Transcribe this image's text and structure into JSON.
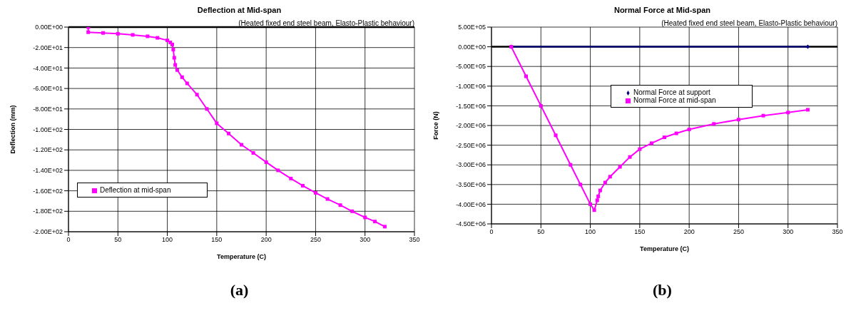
{
  "chart_data": [
    {
      "type": "line",
      "title": "Deflection at Mid-span",
      "subtitle": "(Heated fixed end steel beam, Elasto-Plastic behaviour)",
      "xlabel": "Temperature (C)",
      "ylabel": "Deflection (mm)",
      "annotations": [
        "(a)"
      ],
      "series": [
        {
          "name": "Deflection at mid-span",
          "color": "#ff00ff",
          "marker": "square",
          "x": [
            20,
            20,
            35,
            50,
            65,
            80,
            90,
            100,
            103,
            105,
            106,
            107,
            108,
            110,
            115,
            120,
            130,
            140,
            150,
            162,
            175,
            187,
            200,
            212,
            225,
            237,
            250,
            262,
            275,
            287,
            300,
            310,
            320
          ],
          "values": [
            0,
            -5,
            -5.7,
            -6.5,
            -7.6,
            -9,
            -10.5,
            -13,
            -15,
            -17,
            -22,
            -30,
            -37,
            -42,
            -49,
            -55,
            -66,
            -80,
            -94,
            -104,
            -115,
            -123,
            -132,
            -140,
            -148,
            -155,
            -162,
            -168,
            -174,
            -180,
            -186,
            -190,
            -195
          ]
        }
      ],
      "xlim": [
        0,
        350
      ],
      "xticks": [
        0,
        50,
        100,
        150,
        200,
        250,
        300,
        350
      ],
      "ylim": [
        -200,
        0
      ],
      "yticks": [
        {
          "value": 0,
          "label": "0.00E+00"
        },
        {
          "value": -20,
          "label": "-2.00E+01"
        },
        {
          "value": -40,
          "label": "-4.00E+01"
        },
        {
          "value": -60,
          "label": "-6.00E+01"
        },
        {
          "value": -80,
          "label": "-8.00E+01"
        },
        {
          "value": -100,
          "label": "-1.00E+02"
        },
        {
          "value": -120,
          "label": "-1.20E+02"
        },
        {
          "value": -140,
          "label": "-1.40E+02"
        },
        {
          "value": -160,
          "label": "-1.60E+02"
        },
        {
          "value": -180,
          "label": "-1.80E+02"
        },
        {
          "value": -200,
          "label": "-2.00E+02"
        }
      ],
      "ref_lines": [
        {
          "axis": "y",
          "value": 0,
          "color": "#000000"
        }
      ],
      "grid": true,
      "legend": "left",
      "line_style": "solid"
    },
    {
      "type": "line",
      "title": "Normal Force at Mid-span",
      "subtitle": "(Heated fixed end steel beam, Elasto-Plastic behaviour)",
      "xlabel": "Temperature (C)",
      "ylabel": "Force (N)",
      "annotations": [
        "(b)"
      ],
      "series": [
        {
          "name": "Normal Force at support",
          "color": "#000080",
          "marker": "diamond",
          "x": [
            20,
            320
          ],
          "values": [
            0,
            0
          ]
        },
        {
          "name": "Normal Force at mid-span",
          "color": "#ff00ff",
          "marker": "square",
          "x": [
            20,
            35,
            50,
            65,
            80,
            90,
            100,
            104,
            107,
            108,
            110,
            115,
            120,
            130,
            140,
            150,
            162,
            175,
            187,
            200,
            225,
            250,
            275,
            300,
            320
          ],
          "values": [
            0,
            -750000,
            -1500000,
            -2250000,
            -3000000,
            -3500000,
            -4000000,
            -4150000,
            -3900000,
            -3800000,
            -3650000,
            -3450000,
            -3300000,
            -3050000,
            -2800000,
            -2600000,
            -2450000,
            -2300000,
            -2200000,
            -2100000,
            -1960000,
            -1850000,
            -1750000,
            -1670000,
            -1600000
          ]
        }
      ],
      "xlim": [
        0,
        350
      ],
      "xticks": [
        0,
        50,
        100,
        150,
        200,
        250,
        300,
        350
      ],
      "ylim": [
        -4500000,
        500000
      ],
      "yticks": [
        {
          "value": 500000,
          "label": "5.00E+05"
        },
        {
          "value": 0,
          "label": "0.00E+00"
        },
        {
          "value": -500000,
          "label": "-5.00E+05"
        },
        {
          "value": -1000000,
          "label": "-1.00E+06"
        },
        {
          "value": -1500000,
          "label": "-1.50E+06"
        },
        {
          "value": -2000000,
          "label": "-2.00E+06"
        },
        {
          "value": -2500000,
          "label": "-2.50E+06"
        },
        {
          "value": -3000000,
          "label": "-3.00E+06"
        },
        {
          "value": -3500000,
          "label": "-3.50E+06"
        },
        {
          "value": -4000000,
          "label": "-4.00E+06"
        },
        {
          "value": -4500000,
          "label": "-4.50E+06"
        }
      ],
      "ref_lines": [
        {
          "axis": "y",
          "value": 0,
          "color": "#000000"
        }
      ],
      "grid": true,
      "legend": "top",
      "line_style": "solid"
    }
  ]
}
